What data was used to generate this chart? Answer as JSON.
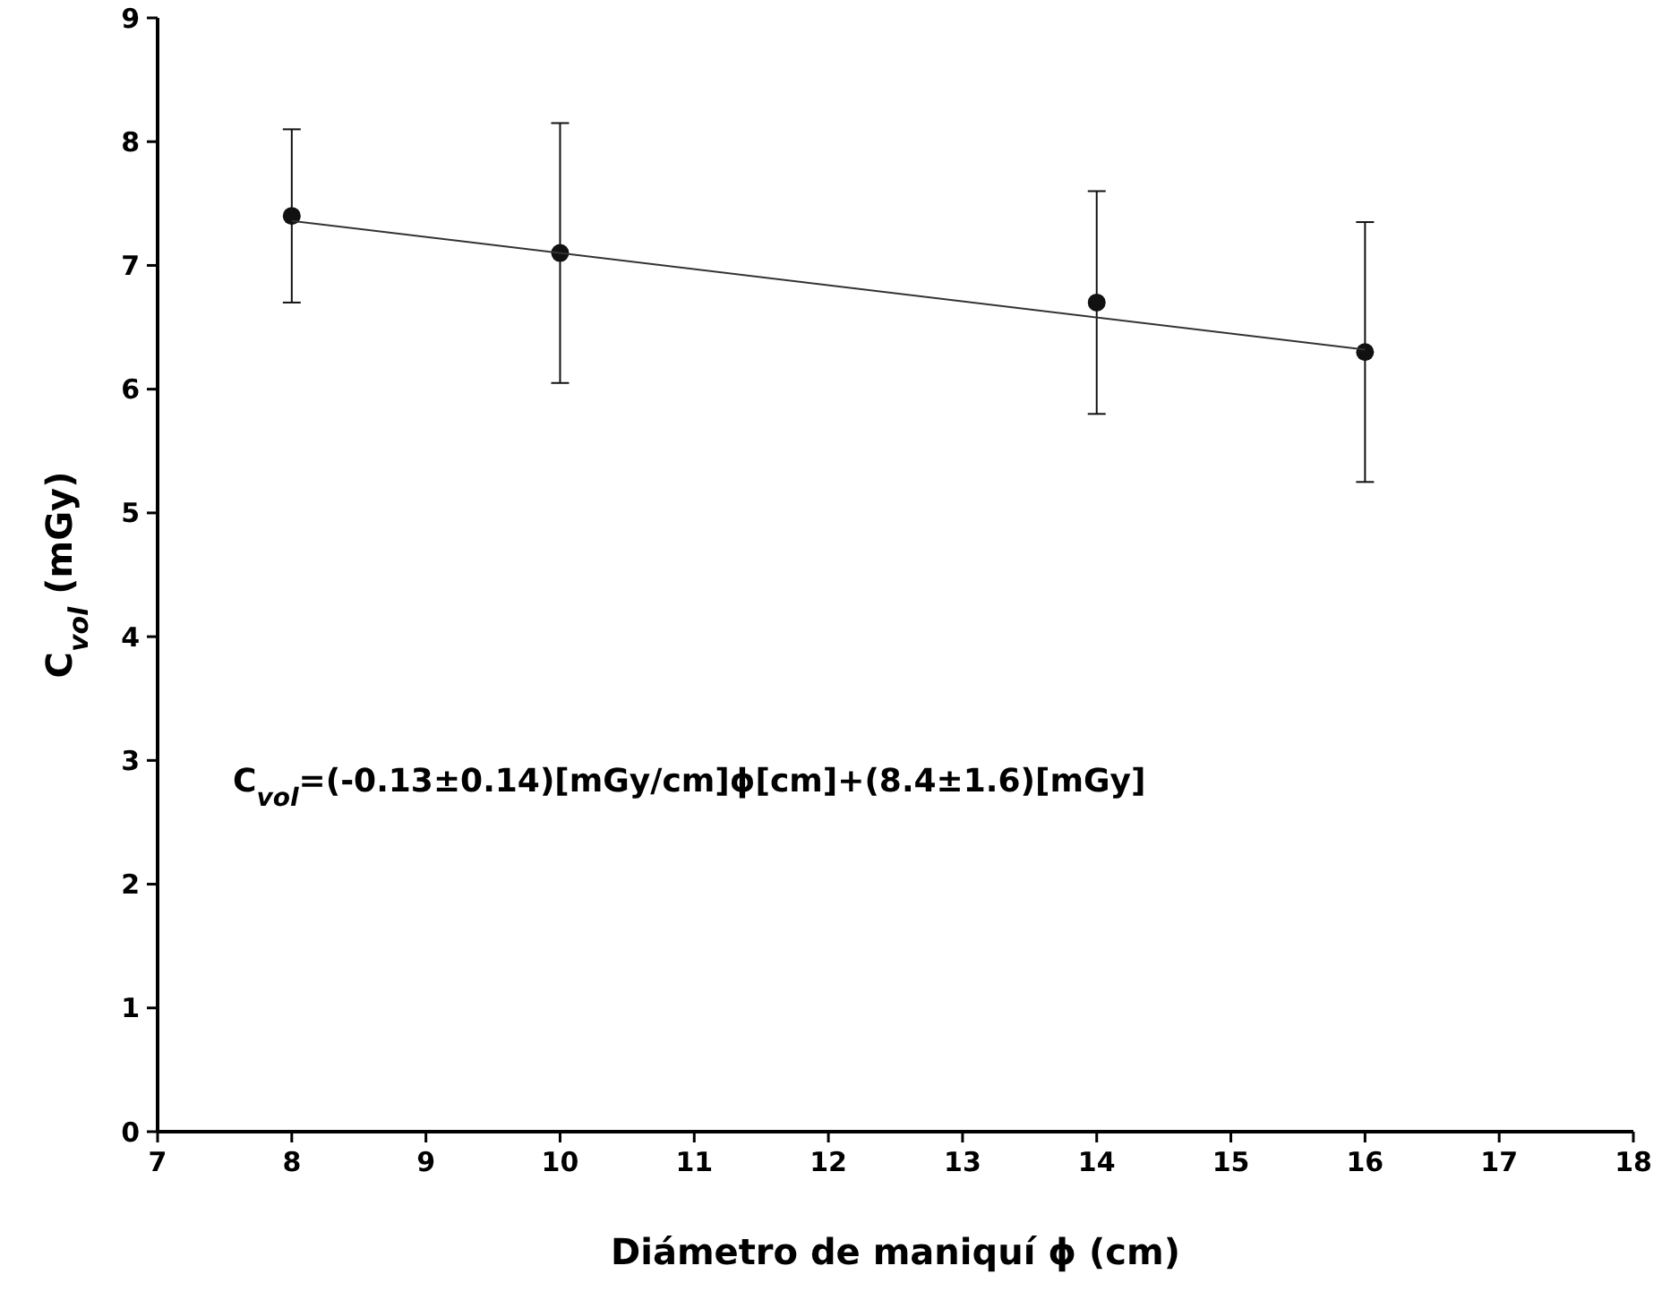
{
  "chart_data": {
    "type": "scatter",
    "xlabel": "Diámetro de maniquí ϕ (cm)",
    "ylabel": "C$_{vol}$ (mGy)",
    "annotations": [
      "C$_{vol}$=(-0.13±0.14)[mGy/cm]ϕ[cm]+(8.4±1.6)[mGy]"
    ],
    "xlim": [
      7,
      18
    ],
    "xticks": [
      7,
      8,
      9,
      10,
      11,
      12,
      13,
      14,
      15,
      16,
      17,
      18
    ],
    "ylim": [
      0,
      9
    ],
    "yticks": [
      0,
      1,
      2,
      3,
      4,
      5,
      6,
      7,
      8,
      9
    ],
    "grid": false,
    "series": [
      {
        "marker": "circle",
        "color": "#111111",
        "x": [
          8,
          10,
          14,
          16
        ],
        "values": [
          7.4,
          7.1,
          6.7,
          6.3
        ],
        "errors": [
          [
            6.7,
            8.1
          ],
          [
            6.05,
            8.15
          ],
          [
            5.8,
            7.6
          ],
          [
            5.25,
            7.35
          ]
        ]
      },
      {
        "type": "line",
        "color": "#333333",
        "x": [
          8,
          16
        ],
        "values": [
          7.36,
          6.32
        ]
      }
    ]
  }
}
